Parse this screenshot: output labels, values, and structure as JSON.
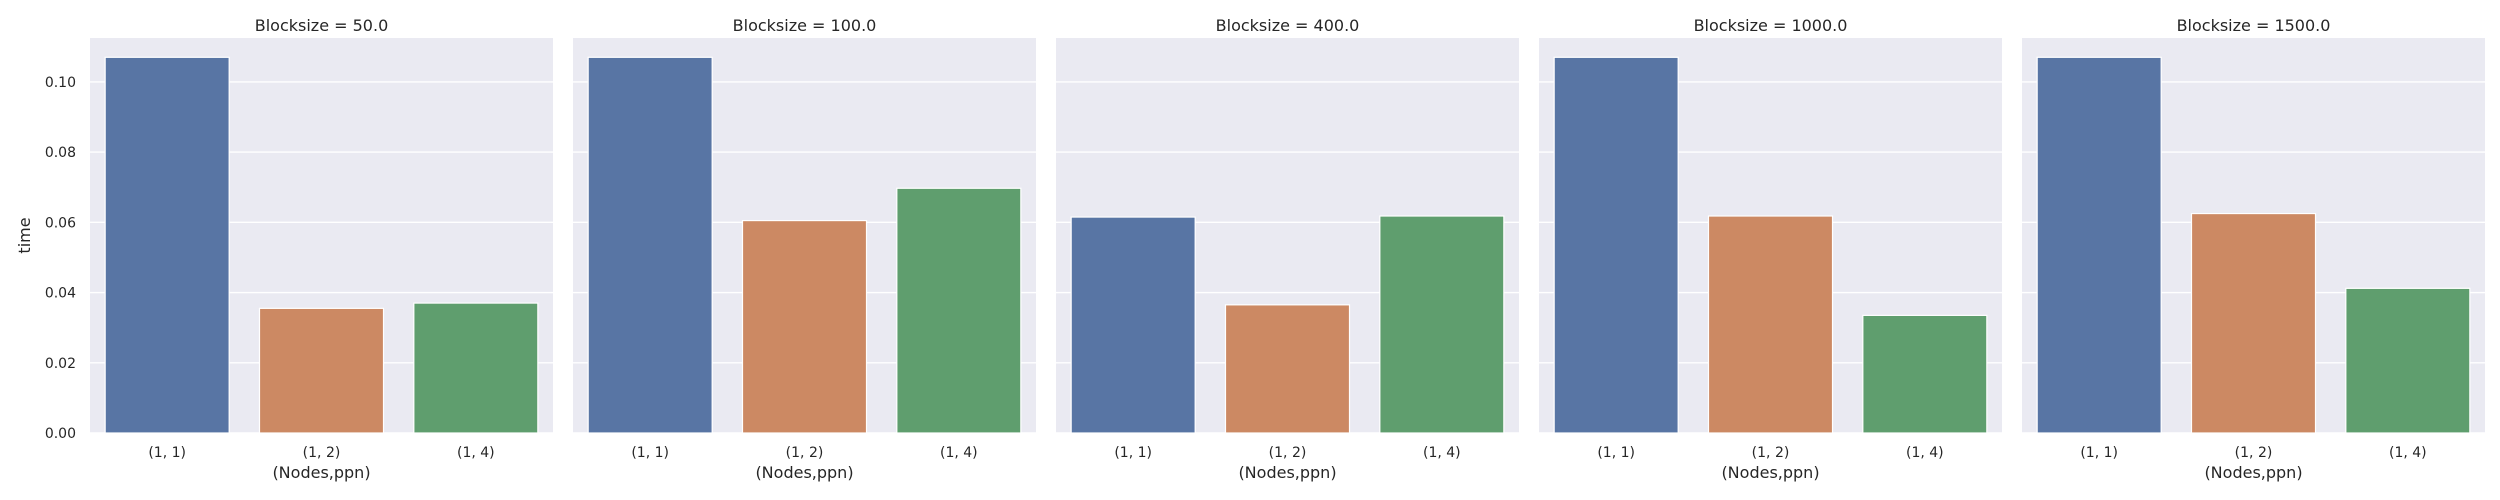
{
  "colors": {
    "panel_background": "#EAEAF2",
    "gridline": "#FFFFFF",
    "text": "#262626"
  },
  "chart_data": {
    "type": "bar",
    "facet_variable": "Blocksize",
    "categories": [
      "(1, 1)",
      "(1, 2)",
      "(1, 4)"
    ],
    "category_colors": [
      "#5875A4",
      "#CC8963",
      "#5F9E6E"
    ],
    "xlabel": "(Nodes,ppn)",
    "ylabel": "time",
    "ylim": [
      0,
      0.1125
    ],
    "yticks": [
      0.0,
      0.02,
      0.04,
      0.06,
      0.08,
      0.1
    ],
    "ytick_labels": [
      "0.00",
      "0.02",
      "0.04",
      "0.06",
      "0.08",
      "0.10"
    ],
    "grid": true,
    "facets": [
      {
        "title": "Blocksize = 50.0",
        "values": [
          0.107,
          0.0355,
          0.037
        ]
      },
      {
        "title": "Blocksize = 100.0",
        "values": [
          0.107,
          0.0605,
          0.0697
        ]
      },
      {
        "title": "Blocksize = 400.0",
        "values": [
          0.0615,
          0.0365,
          0.0618
        ]
      },
      {
        "title": "Blocksize = 1000.0",
        "values": [
          0.107,
          0.0618,
          0.0335
        ]
      },
      {
        "title": "Blocksize = 1500.0",
        "values": [
          0.107,
          0.0625,
          0.0412
        ]
      }
    ]
  }
}
